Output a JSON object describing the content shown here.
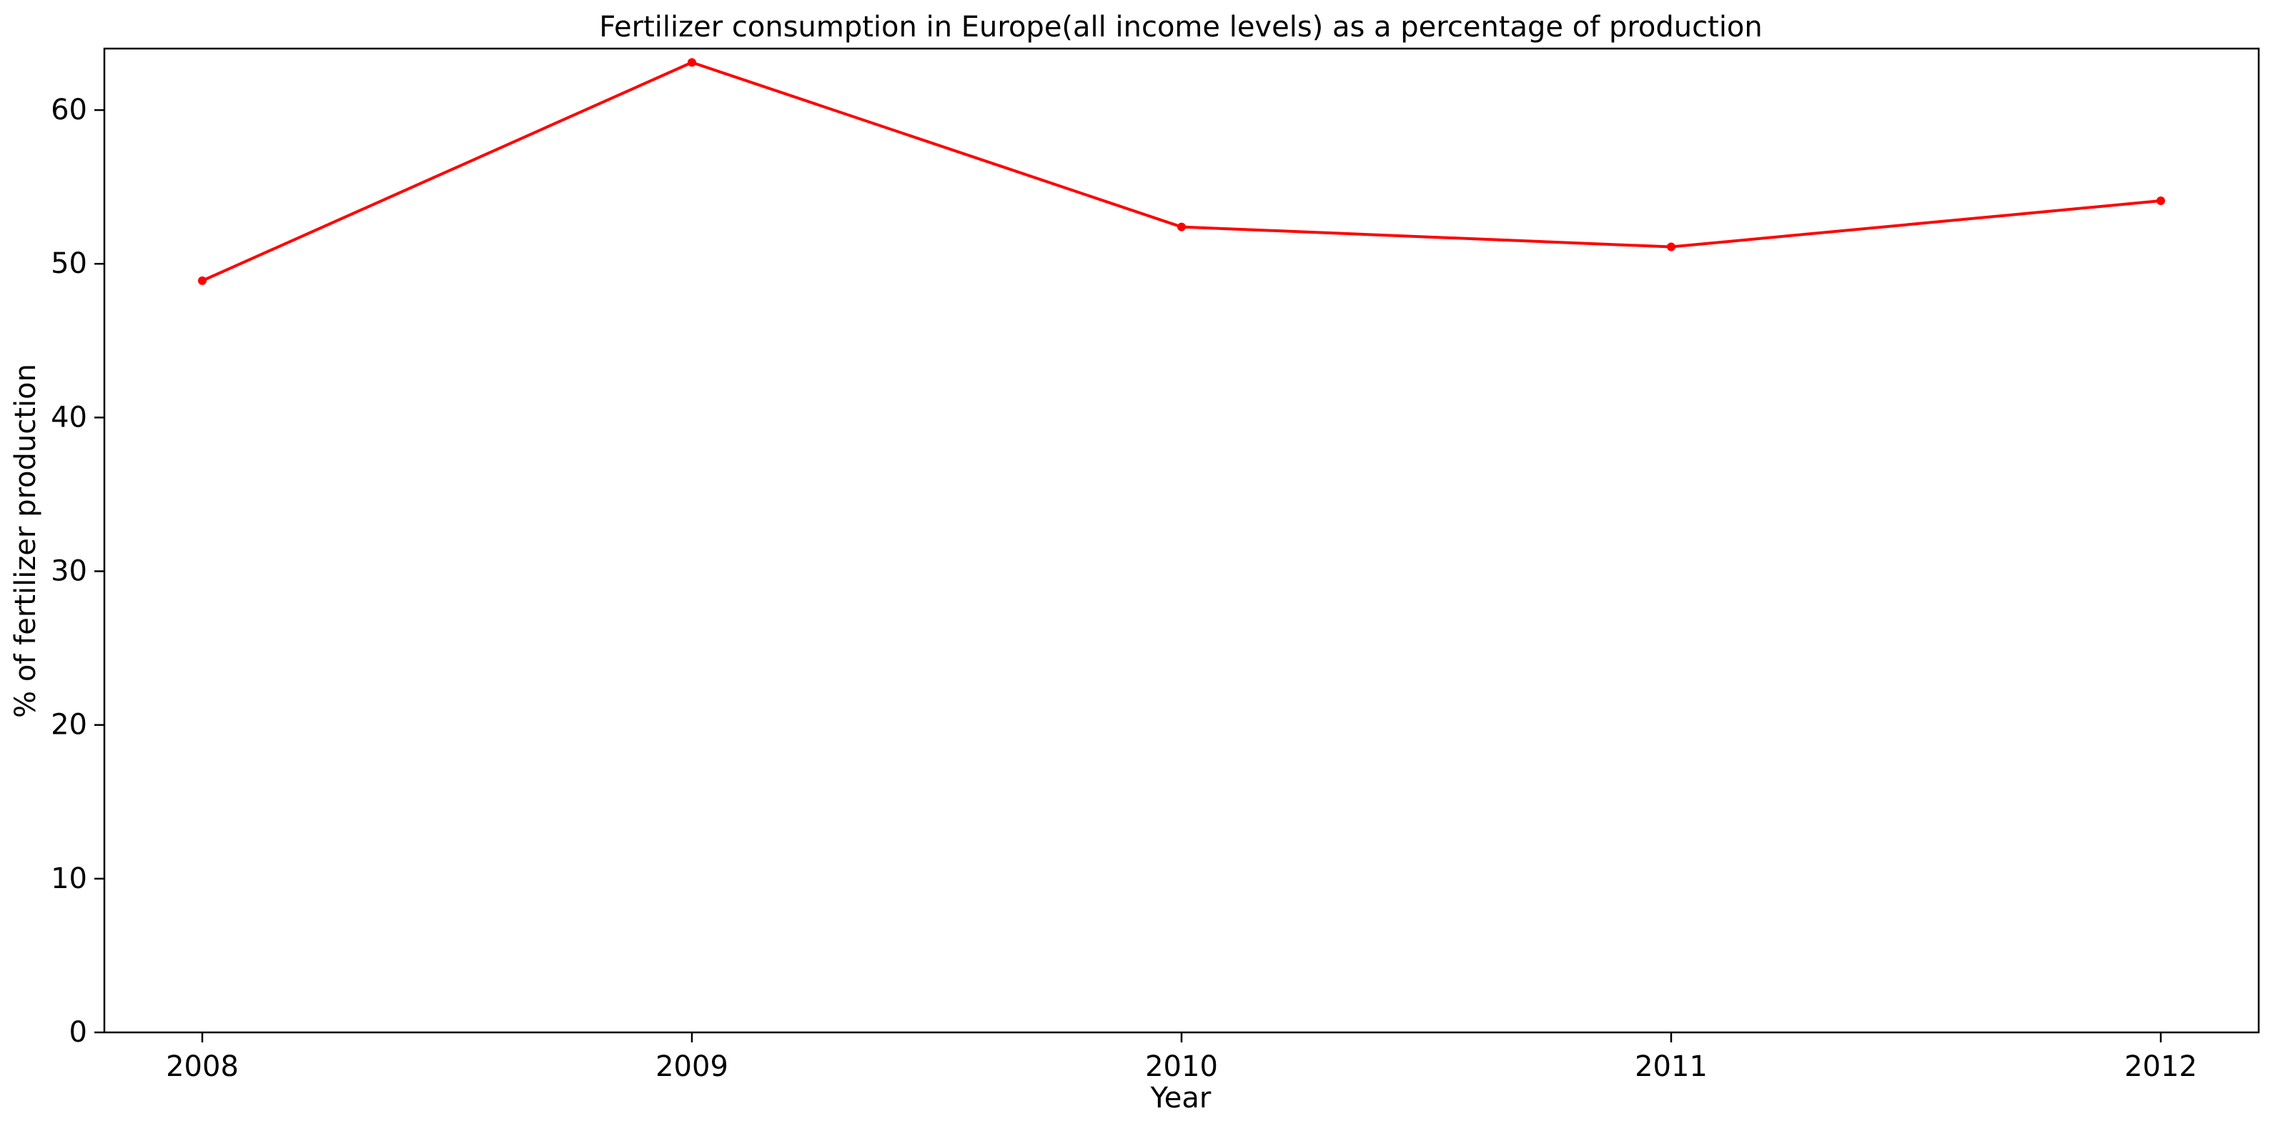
{
  "chart_data": {
    "type": "line",
    "title": "Fertilizer consumption in Europe(all income levels) as a percentage of production",
    "xlabel": "Year",
    "ylabel": "% of fertilizer production",
    "categories": [
      "2008",
      "2009",
      "2010",
      "2011",
      "2012"
    ],
    "series": [
      {
        "values": [
          48.9,
          63.1,
          52.4,
          51.1,
          54.1
        ],
        "color": "#ff0000"
      }
    ],
    "yticks": [
      0,
      10,
      20,
      30,
      40,
      50,
      60
    ],
    "ylim": [
      0,
      64
    ],
    "grid": false,
    "legend": "none"
  }
}
